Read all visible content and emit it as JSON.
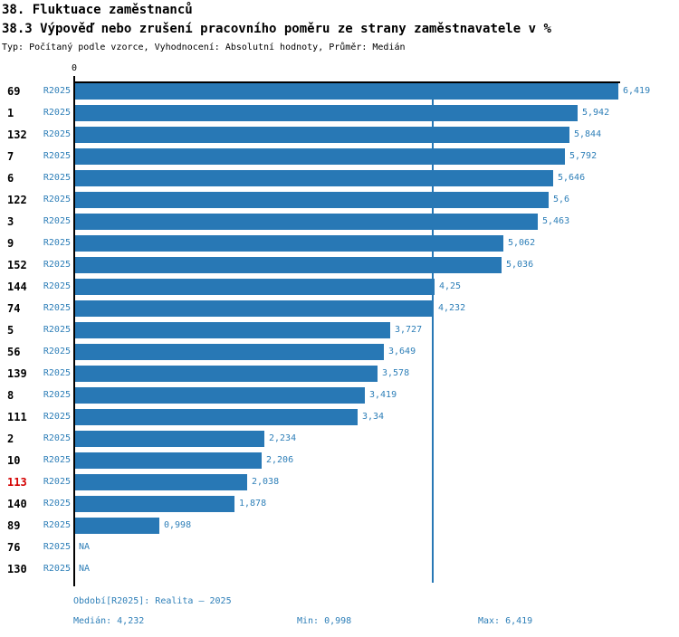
{
  "header": {
    "title": "38. Fluktuace zaměstnanců",
    "subtitle": "38.3 Výpověď nebo zrušení pracovního poměru ze strany zaměstnavatele v %",
    "meta": "Typ: Počítaný podle vzorce, Vyhodnocení: Absolutní hodnoty, Průměr: Medián"
  },
  "colors": {
    "bar": "#2878b5",
    "text_blue": "#2e7fb8",
    "id_red": "#d40000",
    "axis": "#000000"
  },
  "chart_data": {
    "type": "bar",
    "orientation": "horizontal",
    "title": "38.3 Výpověď nebo zrušení pracovního poměru ze strany zaměstnavatele v %",
    "axis_top_tick_label": "0",
    "xlim": [
      0,
      6.419
    ],
    "grid": false,
    "median_value": 4.232,
    "median_line": true,
    "period_label": "R2025",
    "categories": [
      "69",
      "1",
      "132",
      "7",
      "6",
      "122",
      "3",
      "9",
      "152",
      "144",
      "74",
      "5",
      "56",
      "139",
      "8",
      "111",
      "2",
      "10",
      "113",
      "140",
      "89",
      "76",
      "130"
    ],
    "values": [
      6.419,
      5.942,
      5.844,
      5.792,
      5.646,
      5.6,
      5.463,
      5.062,
      5.036,
      4.25,
      4.232,
      3.727,
      3.649,
      3.578,
      3.419,
      3.34,
      2.234,
      2.206,
      2.038,
      1.878,
      0.998,
      null,
      null
    ],
    "value_labels": [
      "6,419",
      "5,942",
      "5,844",
      "5,792",
      "5,646",
      "5,6",
      "5,463",
      "5,062",
      "5,036",
      "4,25",
      "4,232",
      "3,727",
      "3,649",
      "3,578",
      "3,419",
      "3,34",
      "2,234",
      "2,206",
      "2,038",
      "1,878",
      "0,998",
      "NA",
      "NA"
    ],
    "red_categories": [
      "113"
    ]
  },
  "footer": {
    "period_line": "Období[R2025]: Realita – 2025",
    "median_label": "Medián: 4,232",
    "min_label": "Min: 0,998",
    "max_label": "Max: 6,419"
  }
}
